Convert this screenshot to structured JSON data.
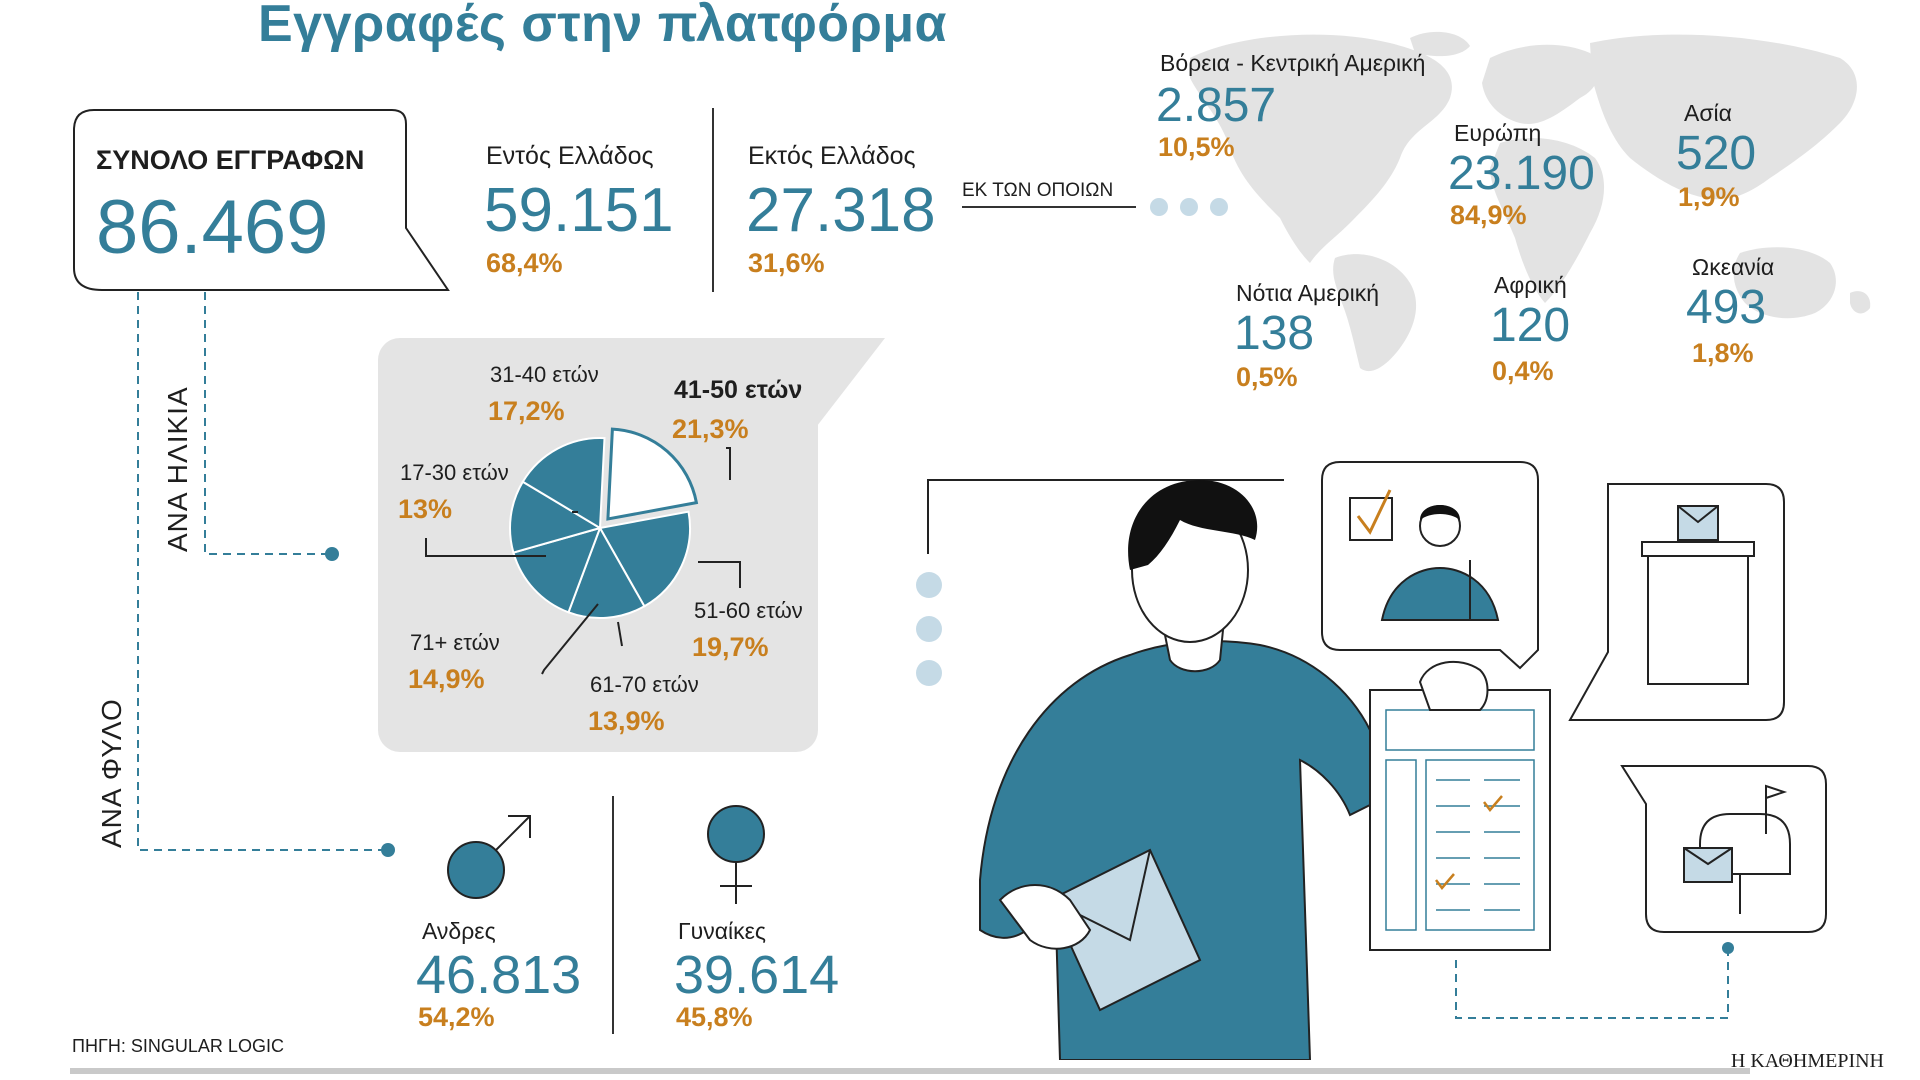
{
  "header": {
    "title": "Εγγραφές στην πλατφόρμα"
  },
  "total": {
    "label": "ΣΥΝΟΛΟ ΕΓΓΡΑΦΩΝ",
    "value": "86.469"
  },
  "domestic": {
    "label": "Εντός Ελλάδος",
    "value": "59.151",
    "pct": "68,4%"
  },
  "abroad": {
    "label": "Εκτός Ελλάδος",
    "value": "27.318",
    "pct": "31,6%",
    "of_which": "ΕΚ ΤΩΝ ΟΠΟΙΩΝ"
  },
  "regions": [
    {
      "name": "Βόρεια - Κεντρική Αμερική",
      "value": "2.857",
      "pct": "10,5%"
    },
    {
      "name": "Ευρώπη",
      "value": "23.190",
      "pct": "84,9%"
    },
    {
      "name": "Ασία",
      "value": "520",
      "pct": "1,9%"
    },
    {
      "name": "Νότια Αμερική",
      "value": "138",
      "pct": "0,5%"
    },
    {
      "name": "Αφρική",
      "value": "120",
      "pct": "0,4%"
    },
    {
      "name": "Ωκεανία",
      "value": "493",
      "pct": "1,8%"
    }
  ],
  "side_labels": {
    "age": "ΑΝΑ ΗΛΙΚΙΑ",
    "gender": "ΑΝΑ ΦΥΛΟ"
  },
  "chart_data": {
    "type": "pie",
    "categories": [
      "41-50 ετών",
      "51-60 ετών",
      "61-70 ετών",
      "71+ ετών",
      "17-30 ετών",
      "31-40 ετών"
    ],
    "values": [
      21.3,
      19.7,
      13.9,
      14.9,
      13.0,
      17.2
    ],
    "labels": [
      "21,3%",
      "19,7%",
      "13,9%",
      "14,9%",
      "13%",
      "17,2%"
    ],
    "highlight": "41-50 ετών",
    "colors": {
      "fill": "#347e99",
      "highlight_fill": "#ffffff",
      "stroke": "#ffffff"
    }
  },
  "gender": {
    "men": {
      "label": "Ανδρες",
      "value": "46.813",
      "pct": "54,2%"
    },
    "women": {
      "label": "Γυναίκες",
      "value": "39.614",
      "pct": "45,8%"
    }
  },
  "footer": {
    "source": "ΠΗΓΗ: SINGULAR LOGIC",
    "brand": "Η ΚΑΘΗΜΕΡΙΝΗ"
  },
  "colors": {
    "accent": "#347e99",
    "orange": "#c87f1e",
    "light_blue": "#c5dae6",
    "card": "#e4e4e4"
  }
}
